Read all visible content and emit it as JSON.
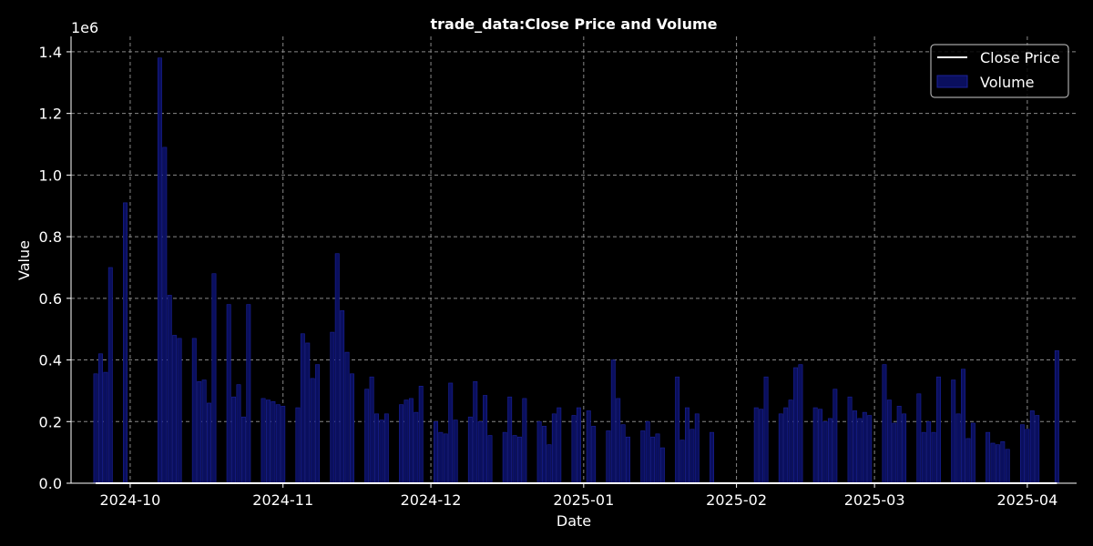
{
  "chart_data": {
    "type": "bar",
    "title": "trade_data:Close Price and Volume",
    "xlabel": "Date",
    "ylabel": "Value",
    "y_scale_label": "1e6",
    "ylim": [
      0,
      1450000
    ],
    "xlim": [
      "2024-09-19",
      "2025-04-11"
    ],
    "grid": true,
    "legend_position": "top-right",
    "colors": {
      "background": "#000000",
      "volume_bar": "#0a0f5e",
      "volume_edge": "#1b2299",
      "close_line": "#ffffff",
      "grid": "#888888",
      "axis": "#ffffff"
    },
    "x_ticks": [
      {
        "date": "2024-10-01",
        "label": "2024-10"
      },
      {
        "date": "2024-11-01",
        "label": "2024-11"
      },
      {
        "date": "2024-12-01",
        "label": "2024-12"
      },
      {
        "date": "2025-01-01",
        "label": "2025-01"
      },
      {
        "date": "2025-02-01",
        "label": "2025-02"
      },
      {
        "date": "2025-03-01",
        "label": "2025-03"
      },
      {
        "date": "2025-04-01",
        "label": "2025-04"
      }
    ],
    "y_ticks": [
      {
        "value": 0,
        "label": "0.0"
      },
      {
        "value": 200000,
        "label": "0.2"
      },
      {
        "value": 400000,
        "label": "0.4"
      },
      {
        "value": 600000,
        "label": "0.6"
      },
      {
        "value": 800000,
        "label": "0.8"
      },
      {
        "value": 1000000,
        "label": "1.0"
      },
      {
        "value": 1200000,
        "label": "1.2"
      },
      {
        "value": 1400000,
        "label": "1.4"
      }
    ],
    "series": [
      {
        "name": "Close Price",
        "type": "line",
        "note": "values near zero at this scale",
        "x": [
          "2024-09-24",
          "2025-04-07"
        ],
        "values": [
          0,
          0
        ]
      },
      {
        "name": "Volume",
        "type": "bar",
        "x": [
          "2024-09-24",
          "2024-09-25",
          "2024-09-26",
          "2024-09-27",
          "2024-09-30",
          "2024-10-07",
          "2024-10-08",
          "2024-10-09",
          "2024-10-10",
          "2024-10-11",
          "2024-10-14",
          "2024-10-15",
          "2024-10-16",
          "2024-10-17",
          "2024-10-18",
          "2024-10-21",
          "2024-10-22",
          "2024-10-23",
          "2024-10-24",
          "2024-10-25",
          "2024-10-28",
          "2024-10-29",
          "2024-10-30",
          "2024-10-31",
          "2024-11-01",
          "2024-11-04",
          "2024-11-05",
          "2024-11-06",
          "2024-11-07",
          "2024-11-08",
          "2024-11-11",
          "2024-11-12",
          "2024-11-13",
          "2024-11-14",
          "2024-11-15",
          "2024-11-18",
          "2024-11-19",
          "2024-11-20",
          "2024-11-21",
          "2024-11-22",
          "2024-11-25",
          "2024-11-26",
          "2024-11-27",
          "2024-11-28",
          "2024-11-29",
          "2024-12-02",
          "2024-12-03",
          "2024-12-04",
          "2024-12-05",
          "2024-12-06",
          "2024-12-09",
          "2024-12-10",
          "2024-12-11",
          "2024-12-12",
          "2024-12-13",
          "2024-12-16",
          "2024-12-17",
          "2024-12-18",
          "2024-12-19",
          "2024-12-20",
          "2024-12-23",
          "2024-12-24",
          "2024-12-25",
          "2024-12-26",
          "2024-12-27",
          "2024-12-30",
          "2024-12-31",
          "2025-01-02",
          "2025-01-03",
          "2025-01-06",
          "2025-01-07",
          "2025-01-08",
          "2025-01-09",
          "2025-01-10",
          "2025-01-13",
          "2025-01-14",
          "2025-01-15",
          "2025-01-16",
          "2025-01-17",
          "2025-01-20",
          "2025-01-21",
          "2025-01-22",
          "2025-01-23",
          "2025-01-24",
          "2025-01-27",
          "2025-02-05",
          "2025-02-06",
          "2025-02-07",
          "2025-02-10",
          "2025-02-11",
          "2025-02-12",
          "2025-02-13",
          "2025-02-14",
          "2025-02-17",
          "2025-02-18",
          "2025-02-19",
          "2025-02-20",
          "2025-02-21",
          "2025-02-24",
          "2025-02-25",
          "2025-02-26",
          "2025-02-27",
          "2025-02-28",
          "2025-03-03",
          "2025-03-04",
          "2025-03-05",
          "2025-03-06",
          "2025-03-07",
          "2025-03-10",
          "2025-03-11",
          "2025-03-12",
          "2025-03-13",
          "2025-03-14",
          "2025-03-17",
          "2025-03-18",
          "2025-03-19",
          "2025-03-20",
          "2025-03-21",
          "2025-03-24",
          "2025-03-25",
          "2025-03-26",
          "2025-03-27",
          "2025-03-28",
          "2025-03-31",
          "2025-04-01",
          "2025-04-02",
          "2025-04-03",
          "2025-04-07"
        ],
        "values": [
          355000,
          420000,
          360000,
          700000,
          910000,
          1380000,
          1090000,
          610000,
          480000,
          470000,
          470000,
          330000,
          335000,
          260000,
          680000,
          580000,
          280000,
          320000,
          215000,
          580000,
          275000,
          270000,
          265000,
          255000,
          250000,
          245000,
          485000,
          455000,
          340000,
          385000,
          490000,
          745000,
          560000,
          425000,
          355000,
          305000,
          345000,
          225000,
          205000,
          225000,
          255000,
          270000,
          275000,
          230000,
          315000,
          200000,
          165000,
          160000,
          325000,
          205000,
          215000,
          330000,
          200000,
          285000,
          155000,
          165000,
          280000,
          155000,
          150000,
          275000,
          200000,
          185000,
          125000,
          225000,
          245000,
          220000,
          245000,
          235000,
          185000,
          170000,
          400000,
          275000,
          190000,
          150000,
          170000,
          200000,
          150000,
          160000,
          115000,
          345000,
          140000,
          245000,
          175000,
          225000,
          165000,
          245000,
          240000,
          345000,
          225000,
          245000,
          270000,
          375000,
          385000,
          245000,
          240000,
          200000,
          210000,
          305000,
          280000,
          235000,
          210000,
          230000,
          220000,
          385000,
          270000,
          195000,
          250000,
          225000,
          290000,
          165000,
          200000,
          165000,
          345000,
          335000,
          225000,
          370000,
          145000,
          195000,
          165000,
          130000,
          125000,
          135000,
          110000,
          190000,
          175000,
          235000,
          220000,
          430000
        ]
      }
    ]
  }
}
